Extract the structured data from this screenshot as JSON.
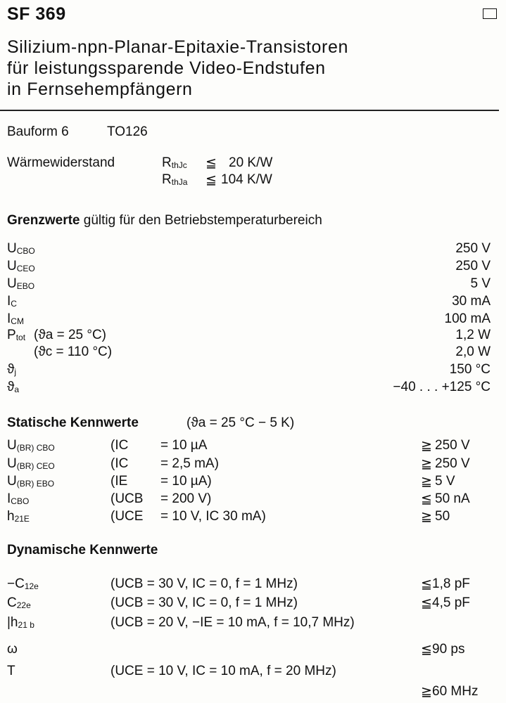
{
  "header": {
    "title": "SF 369",
    "subtitle": [
      "Silizium-npn-Planar-Epitaxie-Transistoren",
      "für leistungssparende Video-Endstufen",
      "in Fernsehempfängern"
    ]
  },
  "package": {
    "label": "Bauform 6",
    "case": "TO126"
  },
  "thermal": {
    "label": "Wärmewiderstand",
    "rows": [
      {
        "sym": "R",
        "sub": "thJc",
        "rel": "≦",
        "value": "20 K/W"
      },
      {
        "sym": "R",
        "sub": "thJa",
        "rel": "≦",
        "value": "104 K/W"
      }
    ]
  },
  "limits": {
    "heading_bold": "Grenzwerte",
    "heading_rest": " gültig für den Betriebstemperaturbereich",
    "rows": [
      {
        "sym": "U",
        "sub": "CBO",
        "cond": "",
        "value": "250 V"
      },
      {
        "sym": "U",
        "sub": "CEO",
        "cond": "",
        "value": "250 V"
      },
      {
        "sym": "U",
        "sub": "EBO",
        "cond": "",
        "value": "5 V"
      },
      {
        "sym": "I",
        "sub": "C",
        "cond": "",
        "value": "30 mA"
      },
      {
        "sym": "I",
        "sub": "CM",
        "cond": "",
        "value": "100 mA"
      },
      {
        "sym": "P",
        "sub": "tot",
        "cond": "(ϑa = 25 °C)",
        "value": "1,2 W"
      },
      {
        "sym": "",
        "sub": "",
        "cond": "(ϑc = 110 °C)",
        "value": "2,0 W"
      },
      {
        "sym": "ϑ",
        "sub": "j",
        "cond": "",
        "value": "150 °C"
      },
      {
        "sym": "ϑ",
        "sub": "a",
        "cond": "",
        "value": "−40 . . . +125 °C"
      }
    ]
  },
  "static": {
    "heading": "Statische Kennwerte",
    "heading_cond": "(ϑa = 25 °C − 5 K)",
    "rows": [
      {
        "sym": "U",
        "sub": "(BR) CBO",
        "cond": "(IC",
        "eq": "= 10 µA",
        "rel": "≧",
        "value": "250 V"
      },
      {
        "sym": "U",
        "sub": "(BR) CEO",
        "cond": "(IC",
        "eq": "= 2,5 mA)",
        "rel": "≧",
        "value": "250 V"
      },
      {
        "sym": "U",
        "sub": "(BR) EBO",
        "cond": "(IE",
        "eq": "= 10 µA)",
        "rel": "≧",
        "value": "5 V"
      },
      {
        "sym": "I",
        "sub": "CBO",
        "cond": "(UCB",
        "eq": "= 200 V)",
        "rel": "≦",
        "value": "50 nA"
      },
      {
        "sym": "h",
        "sub": "21E",
        "cond": "(UCE",
        "eq": "= 10 V, IC 30 mA)",
        "rel": "≧",
        "value": "50"
      }
    ]
  },
  "dynamic": {
    "heading": "Dynamische Kennwerte",
    "rows": [
      {
        "sym": "−C",
        "sub": "12e",
        "cond": "(UCB = 30 V,   IC = 0, f = 1 MHz)",
        "rel": "≦",
        "value": "1,8 pF"
      },
      {
        "sym": "C",
        "sub": "22e",
        "cond": "(UCB = 30 V,   IC = 0, f = 1 MHz)",
        "rel": "≦",
        "value": "4,5 pF"
      },
      {
        "sym": "|h",
        "sub": "21 b",
        "cond": "(UCB = 20 V,  −IE = 10 mA, f = 10,7 MHz)",
        "rel": "",
        "value": ""
      },
      {
        "sym": " ω",
        "sub": "",
        "cond": "",
        "rel": "≦",
        "value": "90 ps"
      },
      {
        "sym": "T",
        "sub": "",
        "cond": "(UCE = 10 V, IC = 10 mA, f = 20 MHz)",
        "rel": "",
        "value": ""
      },
      {
        "sym": "",
        "sub": "",
        "cond": "",
        "rel": "≧",
        "value": "60 MHz"
      }
    ]
  }
}
